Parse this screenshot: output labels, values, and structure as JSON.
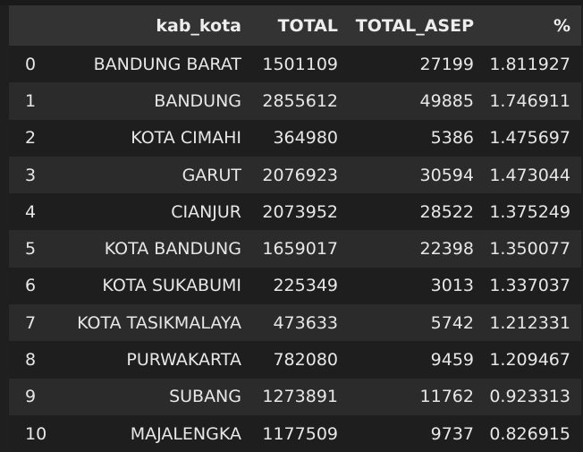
{
  "table": {
    "columns": [
      "",
      "kab_kota",
      "TOTAL",
      "TOTAL_ASEP",
      "%"
    ],
    "rows": [
      {
        "index": "0",
        "kab_kota": "BANDUNG BARAT",
        "total": "1501109",
        "total_asep": "27199",
        "pct": "1.811927"
      },
      {
        "index": "1",
        "kab_kota": "BANDUNG",
        "total": "2855612",
        "total_asep": "49885",
        "pct": "1.746911"
      },
      {
        "index": "2",
        "kab_kota": "KOTA CIMAHI",
        "total": "364980",
        "total_asep": "5386",
        "pct": "1.475697"
      },
      {
        "index": "3",
        "kab_kota": "GARUT",
        "total": "2076923",
        "total_asep": "30594",
        "pct": "1.473044"
      },
      {
        "index": "4",
        "kab_kota": "CIANJUR",
        "total": "2073952",
        "total_asep": "28522",
        "pct": "1.375249"
      },
      {
        "index": "5",
        "kab_kota": "KOTA BANDUNG",
        "total": "1659017",
        "total_asep": "22398",
        "pct": "1.350077"
      },
      {
        "index": "6",
        "kab_kota": "KOTA SUKABUMI",
        "total": "225349",
        "total_asep": "3013",
        "pct": "1.337037"
      },
      {
        "index": "7",
        "kab_kota": "KOTA TASIKMALAYA",
        "total": "473633",
        "total_asep": "5742",
        "pct": "1.212331"
      },
      {
        "index": "8",
        "kab_kota": "PURWAKARTA",
        "total": "782080",
        "total_asep": "9459",
        "pct": "1.209467"
      },
      {
        "index": "9",
        "kab_kota": "SUBANG",
        "total": "1273891",
        "total_asep": "11762",
        "pct": "0.923313"
      },
      {
        "index": "10",
        "kab_kota": "MAJALENGKA",
        "total": "1177509",
        "total_asep": "9737",
        "pct": "0.826915"
      }
    ]
  }
}
